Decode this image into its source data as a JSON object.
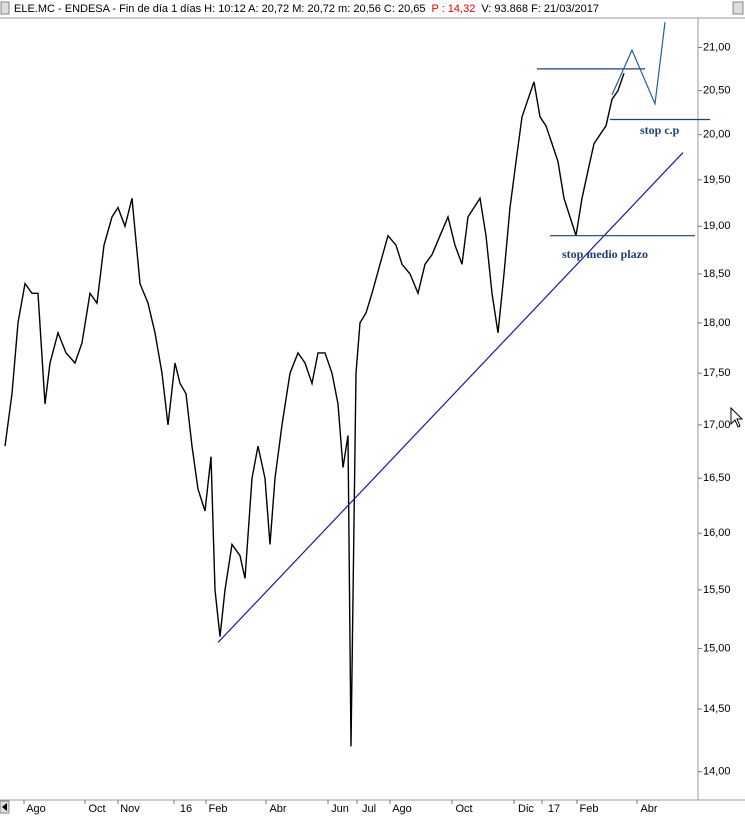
{
  "chart_data": {
    "type": "line",
    "header": [
      {
        "text": "ELE.MC - ENDESA - Fin de día 1 días  H: 10:12  A: 20,72  M: 20,72  m: 20,56  C: 20,65",
        "color": "#000000"
      },
      {
        "text": "P : 14,32",
        "color": "#e00000"
      },
      {
        "text": "V: 93.868  F: 21/03/2017",
        "color": "#000000"
      }
    ],
    "log_scale": true,
    "ylim": [
      13.78,
      21.35
    ],
    "yticks": [
      {
        "value": 14,
        "label": "14,00"
      },
      {
        "value": 14.5,
        "label": "14,50"
      },
      {
        "value": 15,
        "label": "15,00"
      },
      {
        "value": 15.5,
        "label": "15,50"
      },
      {
        "value": 16,
        "label": "16,00"
      },
      {
        "value": 16.5,
        "label": "16,50"
      },
      {
        "value": 17,
        "label": "17,00"
      },
      {
        "value": 17.5,
        "label": "17,50"
      },
      {
        "value": 18,
        "label": "18,00"
      },
      {
        "value": 18.5,
        "label": "18,50"
      },
      {
        "value": 19,
        "label": "19,00"
      },
      {
        "value": 19.5,
        "label": "19,50"
      },
      {
        "value": 20,
        "label": "20,00"
      },
      {
        "value": 20.5,
        "label": "20,50"
      },
      {
        "value": 21,
        "label": "21,00"
      }
    ],
    "xlim": [
      0,
      698
    ],
    "xticks": [
      {
        "value": 36,
        "label": "Ago"
      },
      {
        "value": 97,
        "label": "Oct"
      },
      {
        "value": 130,
        "label": "Nov"
      },
      {
        "value": 186,
        "label": "16"
      },
      {
        "value": 218,
        "label": "Feb"
      },
      {
        "value": 278,
        "label": "Abr"
      },
      {
        "value": 340,
        "label": "Jun"
      },
      {
        "value": 369,
        "label": "Jul"
      },
      {
        "value": 402,
        "label": "Ago"
      },
      {
        "value": 464,
        "label": "Oct"
      },
      {
        "value": 526,
        "label": "Dic"
      },
      {
        "value": 554,
        "label": "17"
      },
      {
        "value": 589,
        "label": "Feb"
      },
      {
        "value": 649,
        "label": "Abr"
      }
    ],
    "series": [
      {
        "name": "ELE.MC",
        "color": "#000000",
        "x": [
          5,
          12,
          18,
          25,
          32,
          38,
          45,
          50,
          58,
          66,
          75,
          82,
          90,
          97,
          104,
          112,
          118,
          125,
          132,
          140,
          148,
          155,
          162,
          168,
          175,
          180,
          186,
          192,
          198,
          205,
          211,
          215,
          220,
          225,
          232,
          240,
          245,
          252,
          258,
          265,
          270,
          275,
          282,
          290,
          298,
          305,
          312,
          318,
          325,
          332,
          338,
          343,
          348,
          351,
          356,
          360,
          366,
          372,
          380,
          388,
          396,
          402,
          410,
          418,
          425,
          432,
          440,
          448,
          455,
          462,
          468,
          474,
          480,
          486,
          492,
          498,
          504,
          510,
          516,
          522,
          528,
          534,
          540,
          546,
          552,
          558,
          564,
          570,
          576,
          582,
          588,
          594,
          600,
          606,
          612,
          618,
          624
        ],
        "values": [
          16.8,
          17.3,
          18.0,
          18.4,
          18.3,
          18.3,
          17.2,
          17.6,
          17.9,
          17.7,
          17.6,
          17.8,
          18.3,
          18.2,
          18.8,
          19.1,
          19.2,
          19.0,
          19.3,
          18.4,
          18.2,
          17.9,
          17.5,
          17.0,
          17.6,
          17.4,
          17.3,
          16.8,
          16.4,
          16.2,
          16.7,
          15.5,
          15.1,
          15.5,
          15.9,
          15.8,
          15.6,
          16.5,
          16.8,
          16.5,
          15.9,
          16.5,
          17.0,
          17.5,
          17.7,
          17.6,
          17.4,
          17.7,
          17.7,
          17.5,
          17.2,
          16.6,
          16.9,
          14.2,
          17.5,
          18.0,
          18.1,
          18.3,
          18.6,
          18.9,
          18.8,
          18.6,
          18.5,
          18.3,
          18.6,
          18.7,
          18.9,
          19.1,
          18.8,
          18.6,
          19.1,
          19.2,
          19.3,
          18.9,
          18.3,
          17.9,
          18.5,
          19.2,
          19.7,
          20.2,
          20.4,
          20.6,
          20.2,
          20.1,
          19.9,
          19.7,
          19.3,
          19.1,
          18.9,
          19.3,
          19.6,
          19.9,
          20.0,
          20.1,
          20.4,
          20.5,
          20.7
        ]
      }
    ],
    "trend_lines": [
      {
        "color": "#1a1aa0",
        "x": [
          218,
          683
        ],
        "values": [
          15.05,
          19.8
        ]
      },
      {
        "color": "#1f3f6f",
        "x": [
          537,
          645
        ],
        "values": [
          20.75,
          20.75
        ]
      },
      {
        "color": "#1f3f6f",
        "x": [
          610,
          710
        ],
        "values": [
          20.17,
          20.17
        ]
      },
      {
        "color": "#1f3f6f",
        "x": [
          550,
          695
        ],
        "values": [
          18.9,
          18.9
        ]
      },
      {
        "color": "#1f5fa0",
        "x": [
          612,
          632,
          655,
          665
        ],
        "values": [
          20.45,
          20.97,
          20.35,
          21.3
        ]
      }
    ],
    "annotations": [
      "stop c.p",
      "stop medio plazo"
    ]
  }
}
